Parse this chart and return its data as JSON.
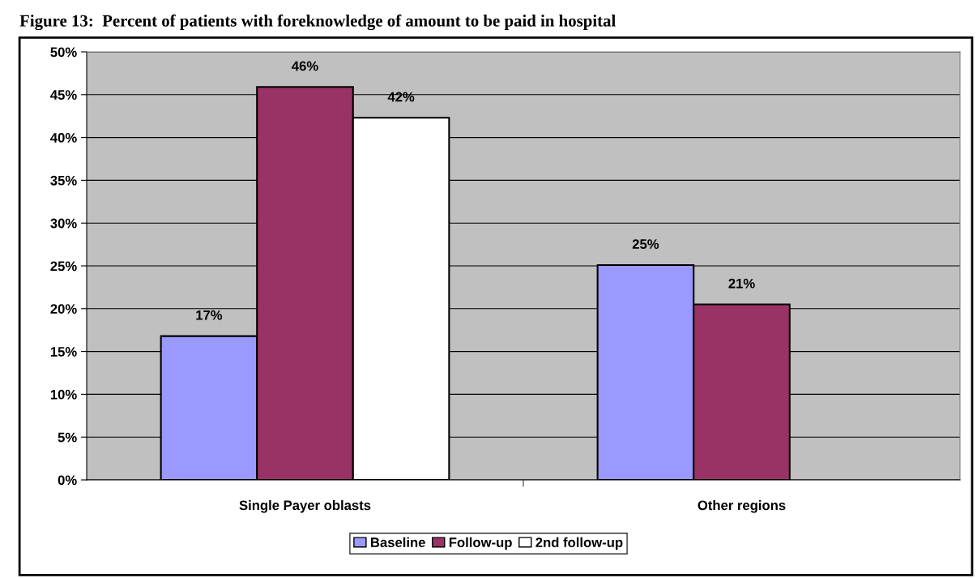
{
  "chart_data": {
    "type": "bar",
    "title": "Figure 13:  Percent of patients with foreknowledge of amount to be paid in hospital",
    "categories": [
      "Single Payer oblasts",
      "Other regions"
    ],
    "series": [
      {
        "name": "Baseline",
        "color": "#9999ff",
        "values": [
          16.8,
          25.1
        ],
        "value_labels": [
          "17%",
          "25%"
        ]
      },
      {
        "name": "Follow-up",
        "color": "#993366",
        "values": [
          45.9,
          20.5
        ],
        "value_labels": [
          "46%",
          "21%"
        ]
      },
      {
        "name": "2nd follow-up",
        "color": "#ffffff",
        "values": [
          42.3,
          null
        ],
        "value_labels": [
          "42%",
          null
        ]
      }
    ],
    "ylim": [
      0,
      50
    ],
    "yticks": [
      {
        "value": 0,
        "label": "0%"
      },
      {
        "value": 5,
        "label": "5%"
      },
      {
        "value": 10,
        "label": "10%"
      },
      {
        "value": 15,
        "label": "15%"
      },
      {
        "value": 20,
        "label": "20%"
      },
      {
        "value": 25,
        "label": "25%"
      },
      {
        "value": 30,
        "label": "30%"
      },
      {
        "value": 35,
        "label": "35%"
      },
      {
        "value": 40,
        "label": "40%"
      },
      {
        "value": 45,
        "label": "45%"
      },
      {
        "value": 50,
        "label": "50%"
      }
    ],
    "grid": "y",
    "legend": "bottom"
  }
}
